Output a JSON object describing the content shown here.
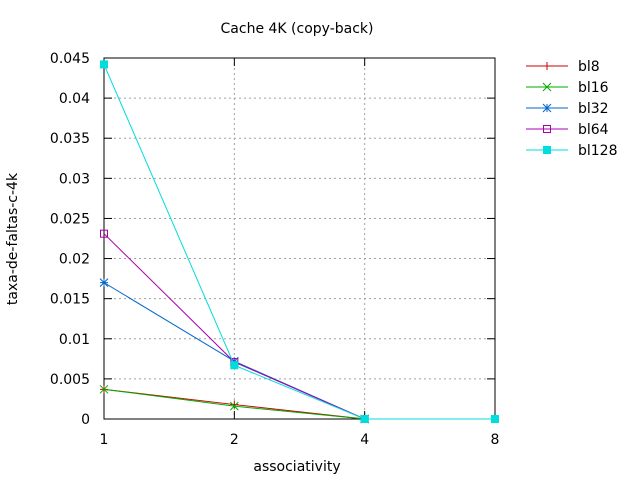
{
  "chart_data": {
    "type": "line",
    "title": "Cache 4K (copy-back)",
    "xlabel": "associativity",
    "ylabel": "taxa-de-faltas-c-4k",
    "x": [
      "1",
      "2",
      "4",
      "8"
    ],
    "ylim": [
      0,
      0.045
    ],
    "yticks": [
      "0",
      "0.005",
      "0.01",
      "0.015",
      "0.02",
      "0.025",
      "0.03",
      "0.035",
      "0.04",
      "0.045"
    ],
    "grid": true,
    "legend_position": "right, outside plot area",
    "series": [
      {
        "name": "bl8",
        "color": "#cc0000",
        "marker": "plus",
        "values": [
          0.0037,
          0.0018,
          0.0,
          null
        ]
      },
      {
        "name": "bl16",
        "color": "#00aa00",
        "marker": "cross",
        "values": [
          0.0037,
          0.0016,
          0.0,
          null
        ]
      },
      {
        "name": "bl32",
        "color": "#0066cc",
        "marker": "star",
        "values": [
          0.017,
          0.0072,
          0.0,
          null
        ]
      },
      {
        "name": "bl64",
        "color": "#aa00aa",
        "marker": "open-square",
        "values": [
          0.0231,
          0.0071,
          0.0,
          null
        ]
      },
      {
        "name": "bl128",
        "color": "#00dddd",
        "marker": "filled-square",
        "values": [
          0.0442,
          0.0067,
          0.0,
          0.0
        ]
      }
    ]
  }
}
